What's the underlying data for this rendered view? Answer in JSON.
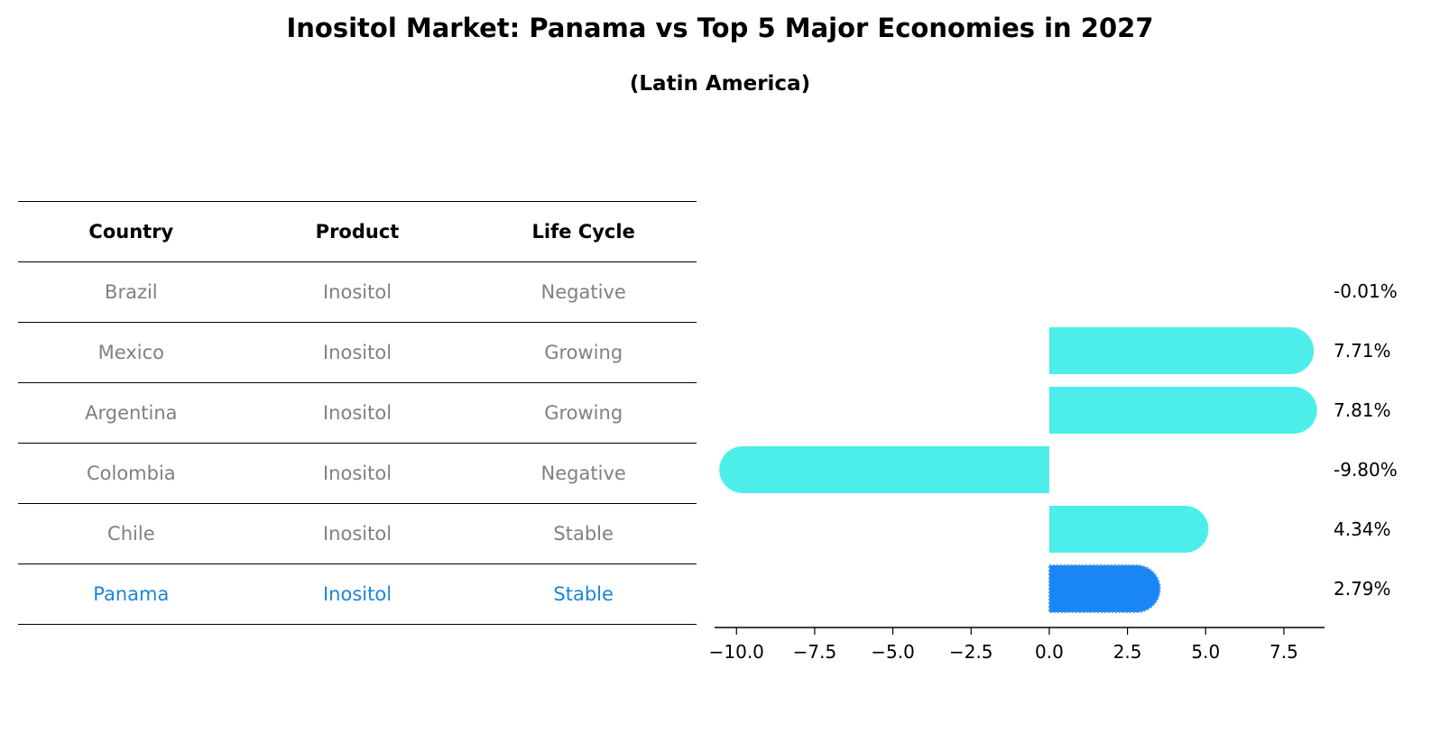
{
  "title": "Inositol Market: Panama vs Top 5 Major Economies in 2027",
  "subtitle": "(Latin America)",
  "table": {
    "headers": [
      "Country",
      "Product",
      "Life Cycle"
    ],
    "rows": [
      [
        "Brazil",
        "Inositol",
        "Negative"
      ],
      [
        "Mexico",
        "Inositol",
        "Growing"
      ],
      [
        "Argentina",
        "Inositol",
        "Growing"
      ],
      [
        "Colombia",
        "Inositol",
        "Negative"
      ],
      [
        "Chile",
        "Inositol",
        "Stable"
      ],
      [
        "Panama",
        "Inositol",
        "Stable"
      ]
    ],
    "highlight_row": 5
  },
  "colors": {
    "bar": "#4deeea",
    "highlight_bar": "#1a86f5",
    "muted_text": "#808080",
    "highlight_text": "#1a86d9"
  },
  "chart_data": {
    "type": "bar",
    "orientation": "horizontal",
    "categories": [
      "Brazil",
      "Mexico",
      "Argentina",
      "Colombia",
      "Chile",
      "Panama"
    ],
    "values": [
      -0.01,
      7.71,
      7.81,
      -9.8,
      4.34,
      2.79
    ],
    "value_labels": [
      "-0.01%",
      "7.71%",
      "7.81%",
      "-9.80%",
      "4.34%",
      "2.79%"
    ],
    "highlight": "Panama",
    "xlim": [
      -10.7,
      8.8
    ],
    "xticks": [
      -10.0,
      -7.5,
      -5.0,
      -2.5,
      0.0,
      2.5,
      5.0,
      7.5
    ],
    "xtick_labels": [
      "−10.0",
      "−7.5",
      "−5.0",
      "−2.5",
      "0.0",
      "2.5",
      "5.0",
      "7.5"
    ],
    "xlabel": "",
    "ylabel": "",
    "grid": false
  }
}
